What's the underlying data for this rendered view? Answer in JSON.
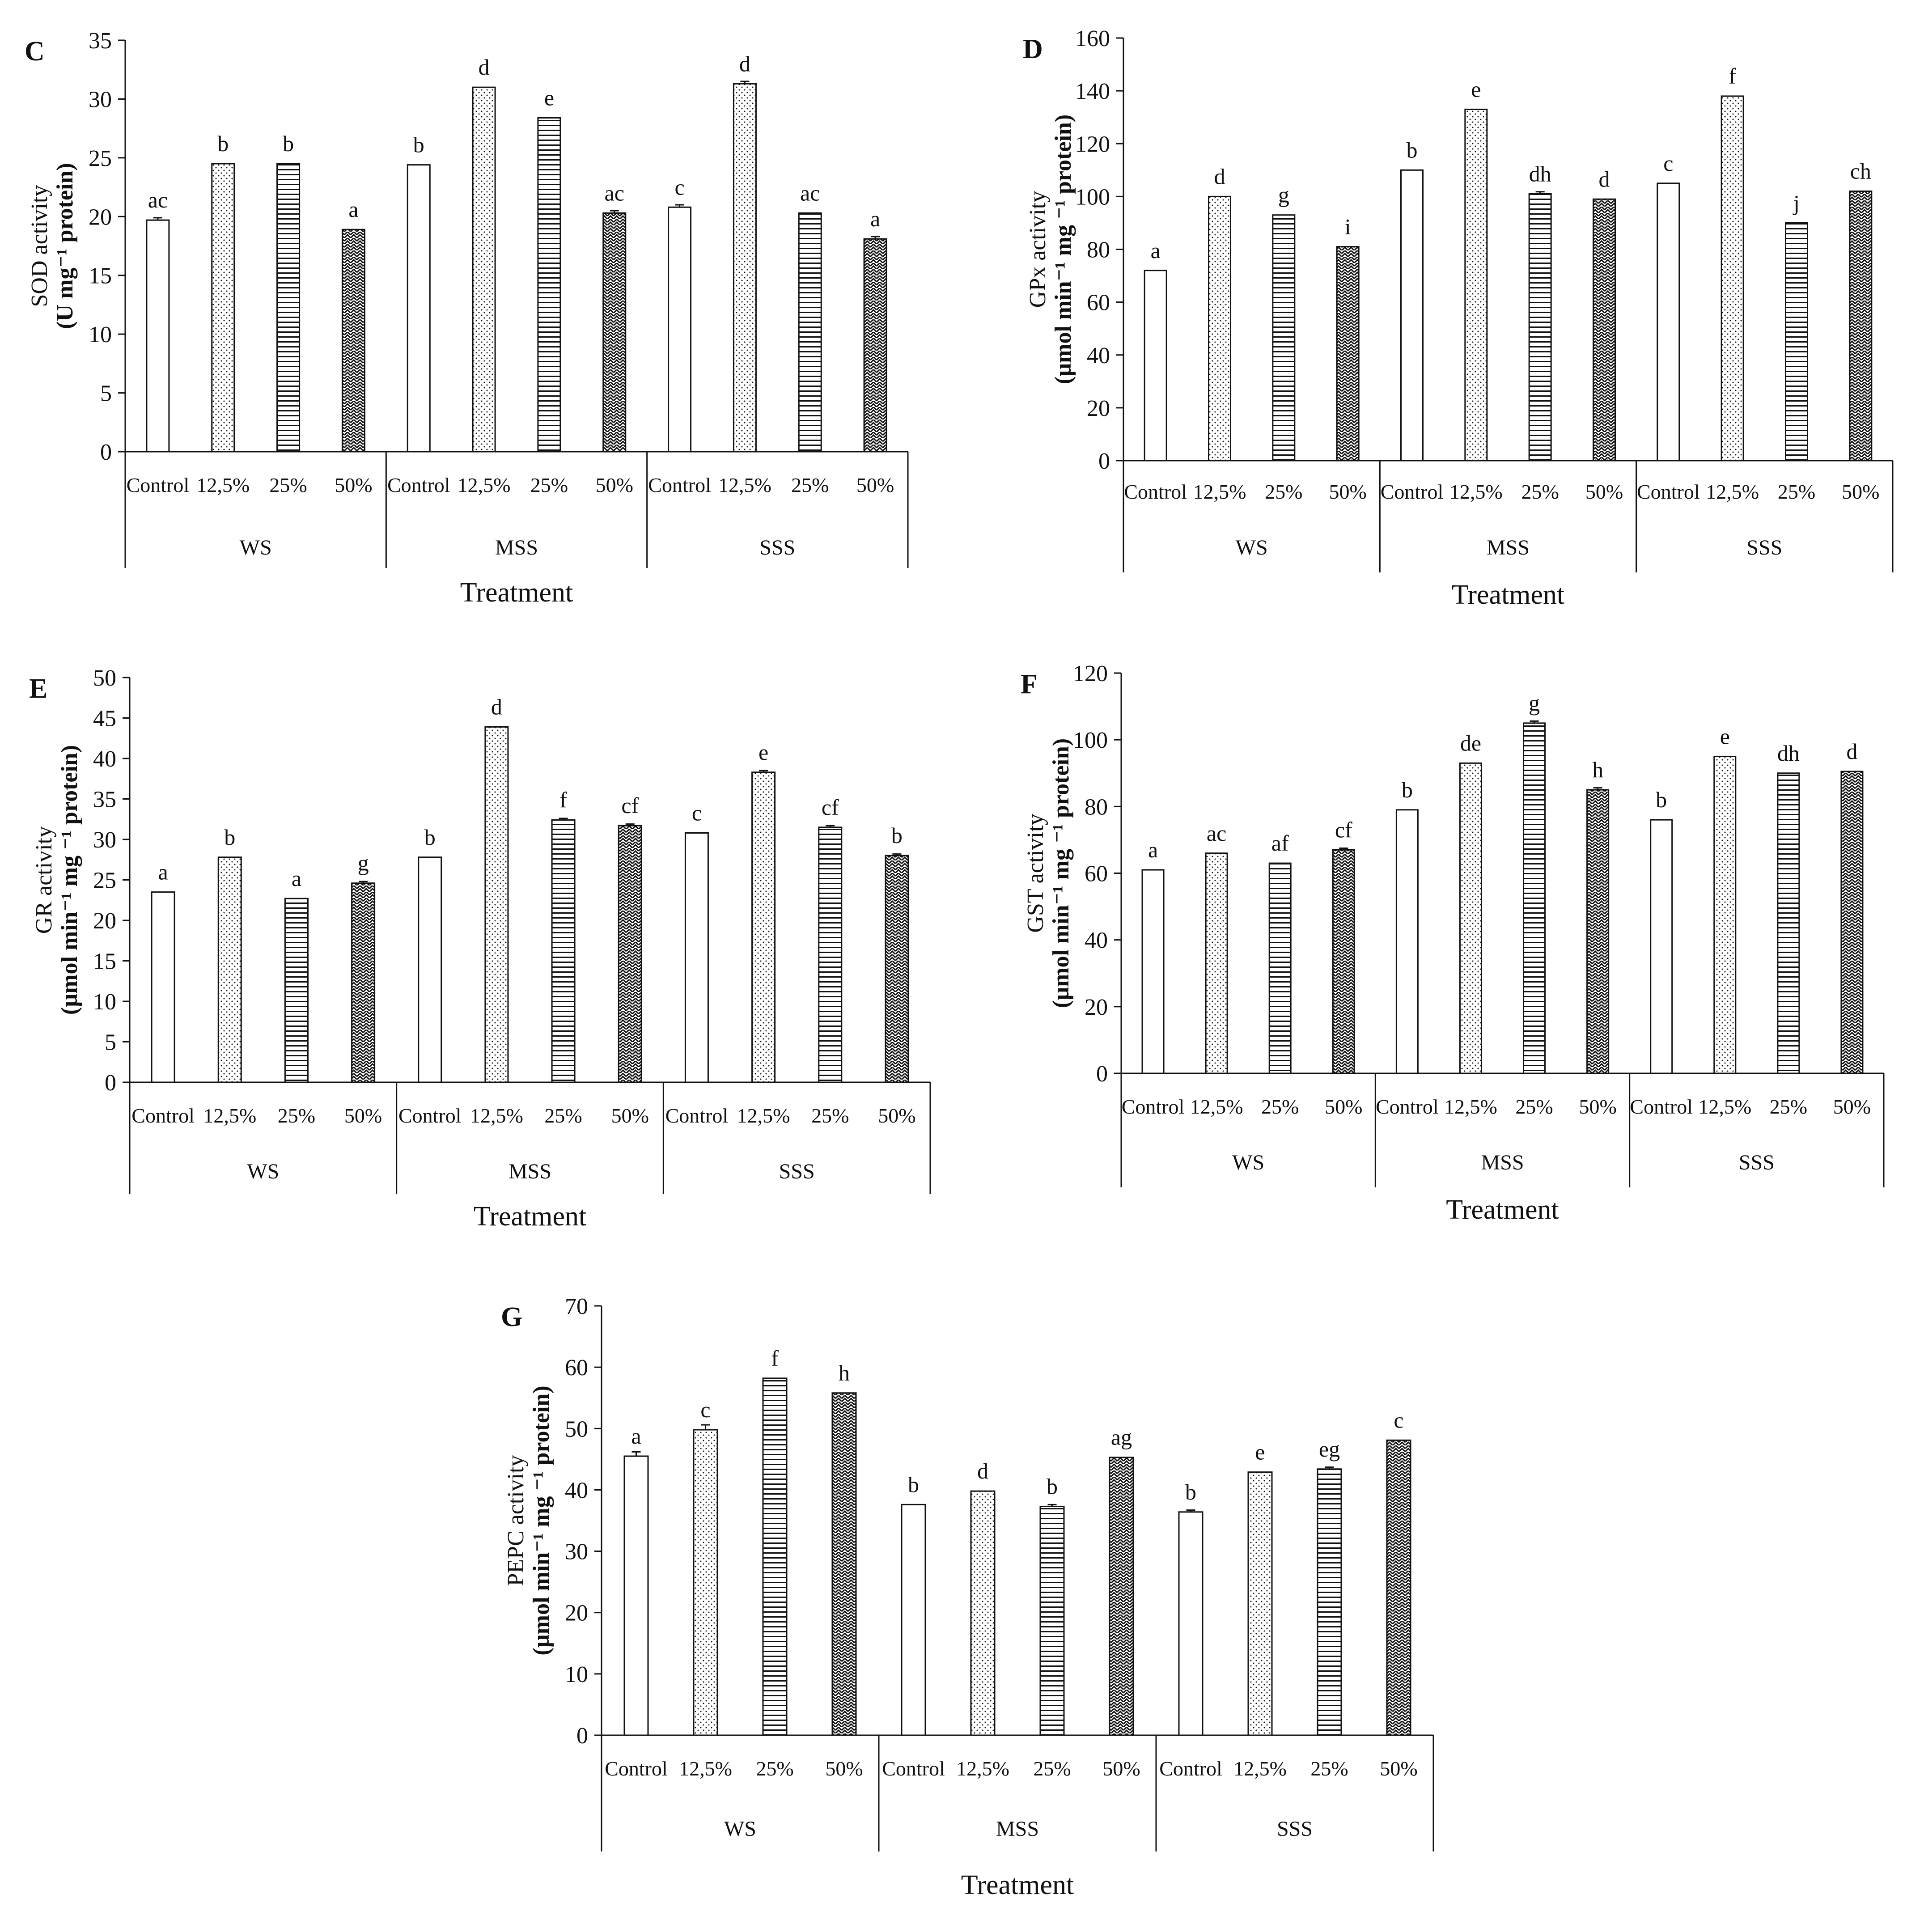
{
  "colors": {
    "ink": "#111111",
    "bar_fill": "#ffffff"
  },
  "patterns": [
    "open",
    "dotted",
    "horizontal-lines",
    "herringbone"
  ],
  "chart_data": [
    {
      "id": "C",
      "type": "bar",
      "panel_label": "C",
      "ylabel": "SOD activity",
      "ylabel_unit": "(U mg⁻¹ protein)",
      "xlabel": "Treatment",
      "ylim": [
        0,
        35
      ],
      "ytick_step": 5,
      "yticks": [
        "0",
        "5",
        "10",
        "15",
        "20",
        "25",
        "30",
        "35"
      ],
      "groups": [
        "WS",
        "MSS",
        "SSS"
      ],
      "categories": [
        "Control",
        "12,5%",
        "25%",
        "50%"
      ],
      "values": [
        [
          19.7,
          24.5,
          24.5,
          18.9
        ],
        [
          24.4,
          31.0,
          28.4,
          20.3
        ],
        [
          20.8,
          31.3,
          20.3,
          18.1
        ]
      ],
      "errors": [
        [
          0.2,
          0,
          0,
          0
        ],
        [
          0,
          0,
          0,
          0.2
        ],
        [
          0.2,
          0.2,
          0,
          0.2
        ]
      ],
      "letters": [
        [
          "ac",
          "b",
          "b",
          "a"
        ],
        [
          "b",
          "d",
          "e",
          "ac"
        ],
        [
          "c",
          "d",
          "ac",
          "a"
        ]
      ]
    },
    {
      "id": "D",
      "type": "bar",
      "panel_label": "D",
      "ylabel": "GPx activity",
      "ylabel_unit": "(µmol min⁻¹ mg ⁻¹ protein)",
      "xlabel": "Treatment",
      "ylim": [
        0,
        160
      ],
      "ytick_step": 20,
      "yticks": [
        "0",
        "20",
        "40",
        "60",
        "80",
        "100",
        "120",
        "140",
        "160"
      ],
      "groups": [
        "WS",
        "MSS",
        "SSS"
      ],
      "categories": [
        "Control",
        "12,5%",
        "25%",
        "50%"
      ],
      "values": [
        [
          72,
          100,
          93,
          81
        ],
        [
          110,
          133,
          101,
          99
        ],
        [
          105,
          138,
          90,
          102
        ]
      ],
      "errors": [
        [
          0,
          0,
          0,
          0
        ],
        [
          0,
          0,
          0.8,
          0
        ],
        [
          0,
          0,
          0,
          0
        ]
      ],
      "letters": [
        [
          "a",
          "d",
          "g",
          "i"
        ],
        [
          "b",
          "e",
          "dh",
          "d"
        ],
        [
          "c",
          "f",
          "j",
          "ch"
        ]
      ]
    },
    {
      "id": "E",
      "type": "bar",
      "panel_label": "E",
      "ylabel": "GR activity",
      "ylabel_unit": "(µmol min⁻¹ mg ⁻¹ protein)",
      "xlabel": "Treatment",
      "ylim": [
        0,
        50
      ],
      "ytick_step": 5,
      "yticks": [
        "0",
        "5",
        "10",
        "15",
        "20",
        "25",
        "30",
        "35",
        "40",
        "45",
        "50"
      ],
      "groups": [
        "WS",
        "MSS",
        "SSS"
      ],
      "categories": [
        "Control",
        "12,5%",
        "25%",
        "50%"
      ],
      "values": [
        [
          23.5,
          27.8,
          22.7,
          24.6
        ],
        [
          27.8,
          43.9,
          32.4,
          31.7
        ],
        [
          30.8,
          38.3,
          31.5,
          28.0
        ]
      ],
      "errors": [
        [
          0,
          0,
          0,
          0.2
        ],
        [
          0,
          0,
          0.2,
          0.2
        ],
        [
          0,
          0.2,
          0.2,
          0.2
        ]
      ],
      "letters": [
        [
          "a",
          "b",
          "a",
          "g"
        ],
        [
          "b",
          "d",
          "f",
          "cf"
        ],
        [
          "c",
          "e",
          "cf",
          "b"
        ]
      ]
    },
    {
      "id": "F",
      "type": "bar",
      "panel_label": "F",
      "ylabel": "GST activity",
      "ylabel_unit": "(µmol min⁻¹ mg ⁻¹ protein)",
      "xlabel": "Treatment",
      "ylim": [
        0,
        120
      ],
      "ytick_step": 20,
      "yticks": [
        "0",
        "20",
        "40",
        "60",
        "80",
        "100",
        "120"
      ],
      "groups": [
        "WS",
        "MSS",
        "SSS"
      ],
      "categories": [
        "Control",
        "12,5%",
        "25%",
        "50%"
      ],
      "values": [
        [
          61,
          66,
          63,
          67
        ],
        [
          79,
          93,
          105,
          85
        ],
        [
          76,
          95,
          90,
          90.5
        ]
      ],
      "errors": [
        [
          0,
          0,
          0,
          0.5
        ],
        [
          0,
          0,
          0.6,
          0.6
        ],
        [
          0,
          0,
          0,
          0
        ]
      ],
      "letters": [
        [
          "a",
          "ac",
          "af",
          "cf"
        ],
        [
          "b",
          "de",
          "g",
          "h"
        ],
        [
          "b",
          "e",
          "dh",
          "d"
        ]
      ]
    },
    {
      "id": "G",
      "type": "bar",
      "panel_label": "G",
      "ylabel": "PEPC activity",
      "ylabel_unit": "(µmol min⁻¹ mg ⁻¹ protein)",
      "xlabel": "Treatment",
      "ylim": [
        0,
        70
      ],
      "ytick_step": 10,
      "yticks": [
        "0",
        "10",
        "20",
        "30",
        "40",
        "50",
        "60",
        "70"
      ],
      "groups": [
        "WS",
        "MSS",
        "SSS"
      ],
      "categories": [
        "Control",
        "12,5%",
        "25%",
        "50%"
      ],
      "values": [
        [
          45.5,
          49.8,
          58.2,
          55.8
        ],
        [
          37.6,
          39.8,
          37.3,
          45.3
        ],
        [
          36.4,
          42.9,
          43.4,
          48.1
        ]
      ],
      "errors": [
        [
          0.7,
          0.8,
          0,
          0
        ],
        [
          0,
          0,
          0.3,
          0
        ],
        [
          0.3,
          0,
          0.3,
          0
        ]
      ],
      "letters": [
        [
          "a",
          "c",
          "f",
          "h"
        ],
        [
          "b",
          "d",
          "b",
          "ag"
        ],
        [
          "b",
          "e",
          "eg",
          "c"
        ]
      ]
    }
  ]
}
